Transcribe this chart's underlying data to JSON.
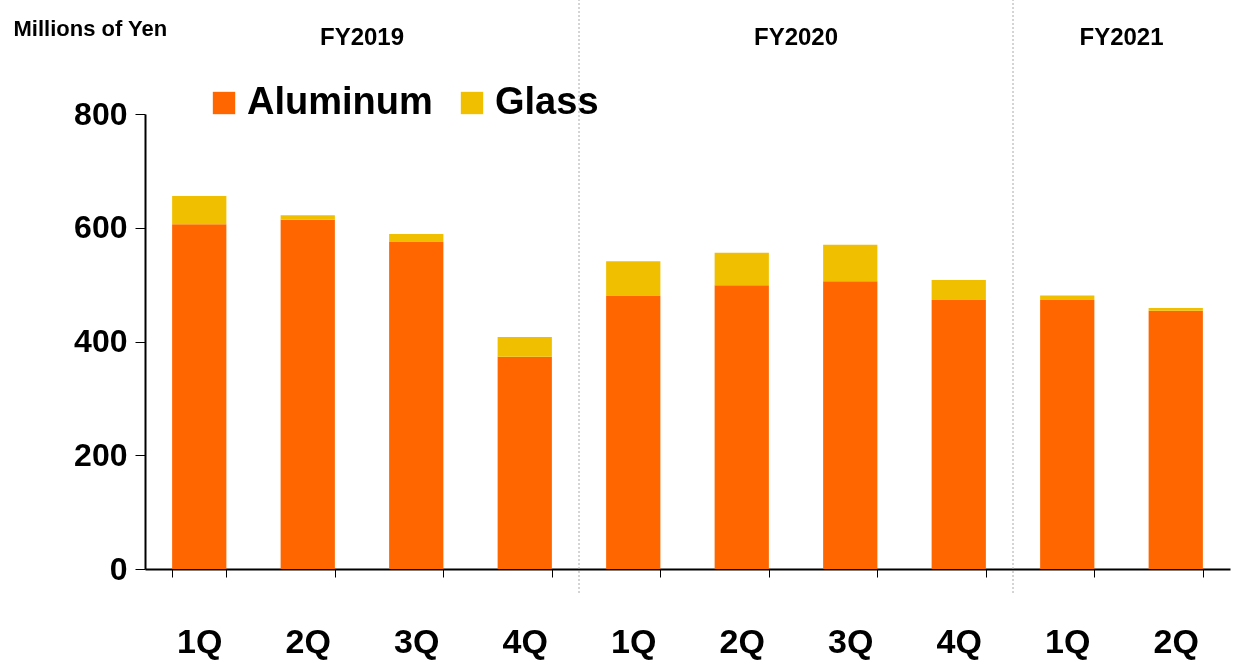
{
  "chart_data": {
    "type": "bar",
    "ylabel": "Millions of Yen",
    "categories": [
      "1Q",
      "2Q",
      "3Q",
      "4Q",
      "1Q",
      "2Q",
      "3Q",
      "4Q",
      "1Q",
      "2Q"
    ],
    "series": [
      {
        "name": "Aluminum",
        "color": "#ff6600",
        "values": [
          606,
          614,
          575,
          373,
          480,
          499,
          506,
          473,
          473,
          454
        ]
      },
      {
        "name": "Glass",
        "color": "#f0c000",
        "values": [
          50,
          8,
          14,
          35,
          61,
          57,
          64,
          35,
          8,
          5
        ]
      }
    ],
    "stacked": true,
    "ylim": [
      0,
      800
    ],
    "yticks": [
      0,
      200,
      400,
      600,
      800
    ],
    "legend": "top left",
    "grid": false,
    "annotations": [
      "FY2019",
      "FY2020",
      "FY2021"
    ]
  }
}
